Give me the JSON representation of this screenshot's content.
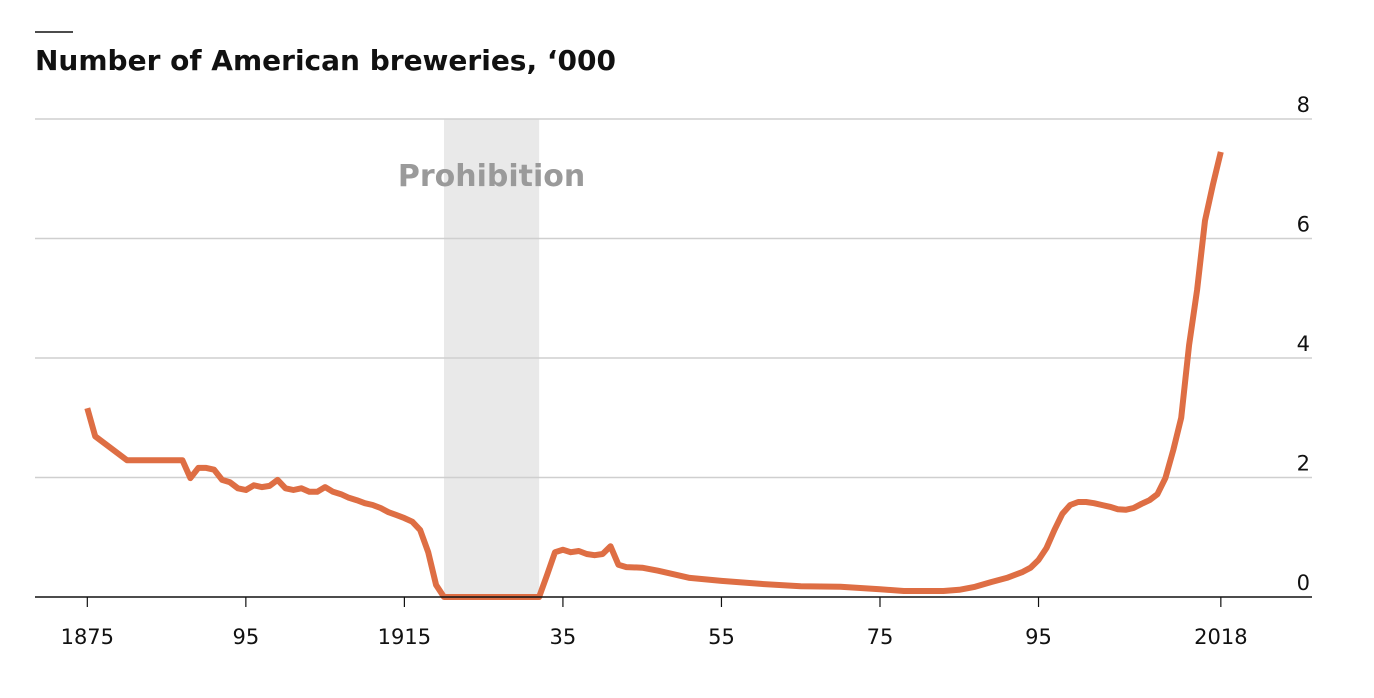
{
  "chart_data": {
    "type": "line",
    "title": "Number of American breweries, ‘000",
    "shade": {
      "x": [
        1920,
        1932
      ],
      "label": "Prohibition",
      "color": "#e9e9e9"
    },
    "x": [
      1875,
      1876,
      1880,
      1887,
      1888,
      1889,
      1890,
      1891,
      1892,
      1893,
      1894,
      1895,
      1896,
      1897,
      1898,
      1899,
      1900,
      1901,
      1902,
      1903,
      1904,
      1905,
      1906,
      1907,
      1908,
      1909,
      1910,
      1911,
      1912,
      1913,
      1914,
      1915,
      1916,
      1917,
      1918,
      1919,
      1920,
      1921,
      1922,
      1923,
      1924,
      1925,
      1926,
      1927,
      1928,
      1929,
      1930,
      1931,
      1932,
      1933,
      1934,
      1935,
      1936,
      1937,
      1938,
      1939,
      1940,
      1941,
      1942,
      1943,
      1945,
      1947,
      1949,
      1951,
      1955,
      1960,
      1965,
      1970,
      1975,
      1978,
      1980,
      1983,
      1985,
      1987,
      1989,
      1991,
      1993,
      1994,
      1995,
      1996,
      1997,
      1998,
      1999,
      2000,
      2001,
      2002,
      2003,
      2004,
      2005,
      2006,
      2007,
      2008,
      2009,
      2010,
      2011,
      2012,
      2013,
      2014,
      2015,
      2016,
      2017,
      2018
    ],
    "series": [
      {
        "color": "#de6e44",
        "values": [
          3.16,
          2.69,
          2.29,
          2.29,
          1.99,
          2.16,
          2.16,
          2.13,
          1.96,
          1.92,
          1.82,
          1.79,
          1.87,
          1.84,
          1.86,
          1.96,
          1.82,
          1.79,
          1.82,
          1.76,
          1.76,
          1.84,
          1.76,
          1.72,
          1.66,
          1.62,
          1.57,
          1.54,
          1.49,
          1.42,
          1.37,
          1.32,
          1.26,
          1.12,
          0.75,
          0.2,
          0,
          0,
          0,
          0,
          0,
          0,
          0,
          0,
          0,
          0,
          0,
          0,
          0,
          0.37,
          0.75,
          0.79,
          0.75,
          0.77,
          0.72,
          0.7,
          0.72,
          0.85,
          0.54,
          0.5,
          0.49,
          0.44,
          0.38,
          0.32,
          0.27,
          0.22,
          0.18,
          0.17,
          0.13,
          0.1,
          0.1,
          0.1,
          0.12,
          0.17,
          0.25,
          0.32,
          0.42,
          0.49,
          0.62,
          0.82,
          1.12,
          1.39,
          1.54,
          1.59,
          1.59,
          1.57,
          1.54,
          1.51,
          1.47,
          1.46,
          1.49,
          1.56,
          1.62,
          1.72,
          1.99,
          2.46,
          3.0,
          4.22,
          5.14,
          6.3,
          6.9,
          7.45
        ]
      }
    ],
    "xlim": [
      1868.4,
      2029.5
    ],
    "xticks": [
      1875,
      {
        "value": 1895,
        "label": "95"
      },
      1915,
      {
        "value": 1935,
        "label": "35"
      },
      {
        "value": 1955,
        "label": "55"
      },
      {
        "value": 1975,
        "label": "75"
      },
      {
        "value": 1995,
        "label": "95"
      },
      2018
    ],
    "ylim": [
      0,
      8
    ],
    "yticks": [
      0,
      2,
      4,
      6,
      8
    ],
    "grid": true
  }
}
